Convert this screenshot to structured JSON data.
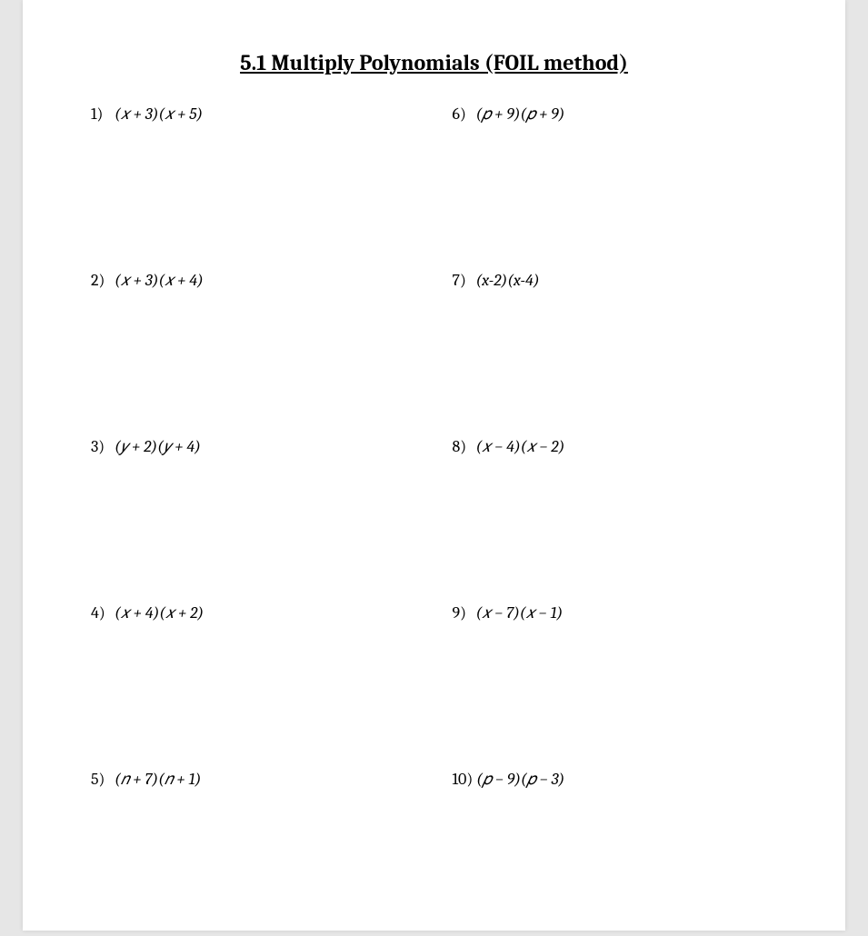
{
  "title": "5.1 Multiply Polynomials (FOIL method)",
  "title_fontsize": 24,
  "title_color": "#000000",
  "background_color": "#e6e6e6",
  "page_color": "#ffffff",
  "text_color": "#000000",
  "problem_fontsize": 18,
  "layout": {
    "columns": 2,
    "rows": 5,
    "spacing_vertical": 162
  },
  "problems_left": [
    {
      "num": "1)",
      "expr": "(𝑥 + 3)(𝑥 + 5)"
    },
    {
      "num": "2)",
      "expr": "(𝑥 + 3)(𝑥 + 4)"
    },
    {
      "num": "3)",
      "expr": "(𝑦 + 2)(𝑦 + 4)"
    },
    {
      "num": "4)",
      "expr": "(𝑥 + 4)(𝑥 + 2)"
    },
    {
      "num": "5)",
      "expr": "(𝑛 + 7)(𝑛 + 1)"
    }
  ],
  "problems_right": [
    {
      "num": "6)",
      "expr": "(𝑝 + 9)(𝑝 + 9)"
    },
    {
      "num": "7)",
      "expr": "(x-2)(x-4)"
    },
    {
      "num": "8)",
      "expr": "(𝑥 − 4)(𝑥 − 2)"
    },
    {
      "num": "9)",
      "expr": "(𝑥 − 7)(𝑥 − 1)"
    },
    {
      "num": "10)",
      "expr": "(𝑝 − 9)(𝑝 − 3)"
    }
  ]
}
